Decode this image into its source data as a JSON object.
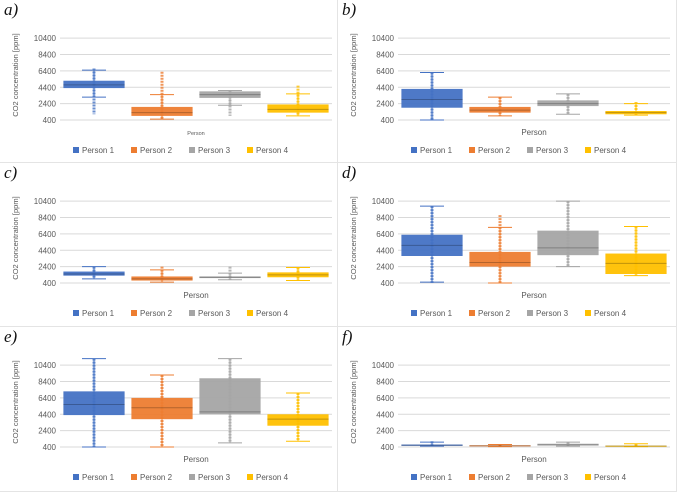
{
  "chart_data": [
    {
      "type": "box",
      "panel_label": "a)",
      "xlabel": "Person",
      "ylabel": "CO2 concentration [ppm]",
      "ylim": [
        400,
        11400
      ],
      "yticks": [
        400,
        2400,
        4400,
        6400,
        8400,
        10400
      ],
      "series": [
        {
          "name": "Person 1",
          "color": "#4472C4",
          "min": 3200,
          "q1": 4300,
          "median": 4700,
          "q3": 5200,
          "max": 6500,
          "outliers_min": 1100,
          "outliers_max": 6700
        },
        {
          "name": "Person 2",
          "color": "#ED7D31",
          "min": 500,
          "q1": 900,
          "median": 1300,
          "q3": 2000,
          "max": 3500,
          "outliers_min": 500,
          "outliers_max": 6300
        },
        {
          "name": "Person 3",
          "color": "#A5A5A5",
          "min": 2200,
          "q1": 3100,
          "median": 3500,
          "q3": 3900,
          "max": 4000,
          "outliers_min": 900,
          "outliers_max": 4000
        },
        {
          "name": "Person 4",
          "color": "#FFC000",
          "min": 900,
          "q1": 1300,
          "median": 1700,
          "q3": 2300,
          "max": 3600,
          "outliers_min": 900,
          "outliers_max": 4600
        }
      ]
    },
    {
      "type": "box",
      "panel_label": "b)",
      "xlabel": "Person",
      "ylabel": "CO2 concentration [ppm]",
      "ylim": [
        400,
        11400
      ],
      "yticks": [
        400,
        2400,
        4400,
        6400,
        8400,
        10400
      ],
      "series": [
        {
          "name": "Person 1",
          "color": "#4472C4",
          "min": 400,
          "q1": 1900,
          "median": 2900,
          "q3": 4200,
          "max": 6200,
          "outliers_min": 400,
          "outliers_max": 6200
        },
        {
          "name": "Person 2",
          "color": "#ED7D31",
          "min": 900,
          "q1": 1300,
          "median": 1600,
          "q3": 2000,
          "max": 3200,
          "outliers_min": 900,
          "outliers_max": 3200
        },
        {
          "name": "Person 3",
          "color": "#A5A5A5",
          "min": 1100,
          "q1": 2100,
          "median": 2400,
          "q3": 2800,
          "max": 3600,
          "outliers_min": 1100,
          "outliers_max": 3600
        },
        {
          "name": "Person 4",
          "color": "#FFC000",
          "min": 1000,
          "q1": 1100,
          "median": 1300,
          "q3": 1500,
          "max": 2400,
          "outliers_min": 1000,
          "outliers_max": 2600
        }
      ]
    },
    {
      "type": "box",
      "panel_label": "c)",
      "xlabel": "Person",
      "ylabel": "CO2 concentration [ppm]",
      "ylim": [
        400,
        11400
      ],
      "yticks": [
        400,
        2400,
        4400,
        6400,
        8400,
        10400
      ],
      "series": [
        {
          "name": "Person 1",
          "color": "#4472C4",
          "min": 900,
          "q1": 1300,
          "median": 1500,
          "q3": 1800,
          "max": 2400,
          "outliers_min": 900,
          "outliers_max": 2400
        },
        {
          "name": "Person 2",
          "color": "#ED7D31",
          "min": 500,
          "q1": 700,
          "median": 900,
          "q3": 1200,
          "max": 2000,
          "outliers_min": 500,
          "outliers_max": 2400
        },
        {
          "name": "Person 3",
          "color": "#A5A5A5",
          "min": 800,
          "q1": 1000,
          "median": 1100,
          "q3": 1200,
          "max": 1600,
          "outliers_min": 800,
          "outliers_max": 2400
        },
        {
          "name": "Person 4",
          "color": "#FFC000",
          "min": 700,
          "q1": 1100,
          "median": 1400,
          "q3": 1700,
          "max": 2300,
          "outliers_min": 700,
          "outliers_max": 2300
        }
      ]
    },
    {
      "type": "box",
      "panel_label": "d)",
      "xlabel": "Person",
      "ylabel": "CO2 concentration [ppm]",
      "ylim": [
        400,
        11400
      ],
      "yticks": [
        400,
        2400,
        4400,
        6400,
        8400,
        10400
      ],
      "series": [
        {
          "name": "Person 1",
          "color": "#4472C4",
          "min": 500,
          "q1": 3700,
          "median": 5000,
          "q3": 6300,
          "max": 9800,
          "outliers_min": 400,
          "outliers_max": 9800
        },
        {
          "name": "Person 2",
          "color": "#ED7D31",
          "min": 400,
          "q1": 2400,
          "median": 2900,
          "q3": 4200,
          "max": 7200,
          "outliers_min": 400,
          "outliers_max": 8700
        },
        {
          "name": "Person 3",
          "color": "#A5A5A5",
          "min": 2400,
          "q1": 3800,
          "median": 4700,
          "q3": 6800,
          "max": 10400,
          "outliers_min": 2400,
          "outliers_max": 10400
        },
        {
          "name": "Person 4",
          "color": "#FFC000",
          "min": 1300,
          "q1": 1500,
          "median": 2800,
          "q3": 4000,
          "max": 7300,
          "outliers_min": 1300,
          "outliers_max": 7300
        }
      ]
    },
    {
      "type": "box",
      "panel_label": "e)",
      "xlabel": "Person",
      "ylabel": "CO2 concentration [ppm]",
      "ylim": [
        400,
        11400
      ],
      "yticks": [
        400,
        2400,
        4400,
        6400,
        8400,
        10400
      ],
      "series": [
        {
          "name": "Person 1",
          "color": "#4472C4",
          "min": 400,
          "q1": 4300,
          "median": 5600,
          "q3": 7200,
          "max": 11200,
          "outliers_min": 400,
          "outliers_max": 11200
        },
        {
          "name": "Person 2",
          "color": "#ED7D31",
          "min": 400,
          "q1": 3800,
          "median": 5200,
          "q3": 6400,
          "max": 9200,
          "outliers_min": 400,
          "outliers_max": 9200
        },
        {
          "name": "Person 3",
          "color": "#A5A5A5",
          "min": 900,
          "q1": 4400,
          "median": 4700,
          "q3": 8800,
          "max": 11200,
          "outliers_min": 900,
          "outliers_max": 11200
        },
        {
          "name": "Person 4",
          "color": "#FFC000",
          "min": 1100,
          "q1": 3000,
          "median": 3800,
          "q3": 4400,
          "max": 7000,
          "outliers_min": 1100,
          "outliers_max": 7000
        }
      ]
    },
    {
      "type": "box",
      "panel_label": "f)",
      "xlabel": "Person",
      "ylabel": "CO2 concentration [ppm]",
      "ylim": [
        400,
        11400
      ],
      "yticks": [
        400,
        2400,
        4400,
        6400,
        8400,
        10400
      ],
      "series": [
        {
          "name": "Person 1",
          "color": "#4472C4",
          "min": 500,
          "q1": 550,
          "median": 620,
          "q3": 700,
          "max": 1000,
          "outliers_min": 400,
          "outliers_max": 1100
        },
        {
          "name": "Person 2",
          "color": "#ED7D31",
          "min": 450,
          "q1": 500,
          "median": 550,
          "q3": 600,
          "max": 700,
          "outliers_min": 450,
          "outliers_max": 700
        },
        {
          "name": "Person 3",
          "color": "#A5A5A5",
          "min": 500,
          "q1": 600,
          "median": 650,
          "q3": 800,
          "max": 1000,
          "outliers_min": 500,
          "outliers_max": 1000
        },
        {
          "name": "Person 4",
          "color": "#FFC000",
          "min": 450,
          "q1": 480,
          "median": 520,
          "q3": 560,
          "max": 800,
          "outliers_min": 400,
          "outliers_max": 800
        }
      ]
    }
  ]
}
